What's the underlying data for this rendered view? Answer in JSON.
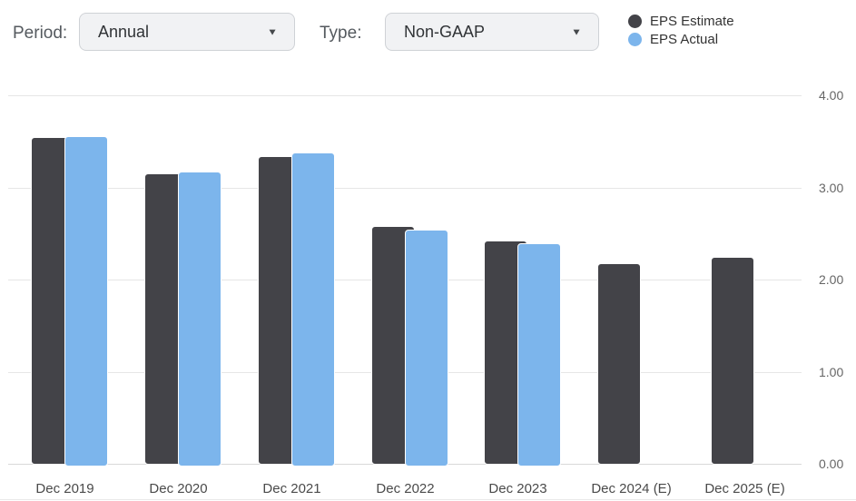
{
  "controls": {
    "period": {
      "label": "Period:",
      "value": "Annual"
    },
    "type": {
      "label": "Type:",
      "value": "Non-GAAP"
    },
    "dropdown_arrow": "▼"
  },
  "legend": [
    {
      "label": "EPS Estimate",
      "color": "#434348"
    },
    {
      "label": "EPS Actual",
      "color": "#7cb5ec"
    }
  ],
  "chart_data": {
    "type": "bar",
    "categories": [
      "Dec 2019",
      "Dec 2020",
      "Dec 2021",
      "Dec 2022",
      "Dec 2023",
      "Dec 2024 (E)",
      "Dec 2025 (E)"
    ],
    "series": [
      {
        "name": "EPS Estimate",
        "color": "#434348",
        "values": [
          3.55,
          3.15,
          3.34,
          2.58,
          2.42,
          2.18,
          2.25
        ]
      },
      {
        "name": "EPS Actual",
        "color": "#7cb5ec",
        "values": [
          3.56,
          3.17,
          3.38,
          2.54,
          2.39,
          null,
          null
        ]
      }
    ],
    "title": "",
    "xlabel": "",
    "ylabel": "",
    "ylim": [
      0,
      4
    ],
    "yticks": [
      {
        "value": 4,
        "label": "4.00"
      },
      {
        "value": 3,
        "label": "3.00"
      },
      {
        "value": 2,
        "label": "2.00"
      },
      {
        "value": 1,
        "label": "1.00"
      },
      {
        "value": 0,
        "label": "0.00"
      }
    ],
    "grid": true,
    "legend_position": "top-right",
    "grid_color": "#e6e6e6"
  }
}
